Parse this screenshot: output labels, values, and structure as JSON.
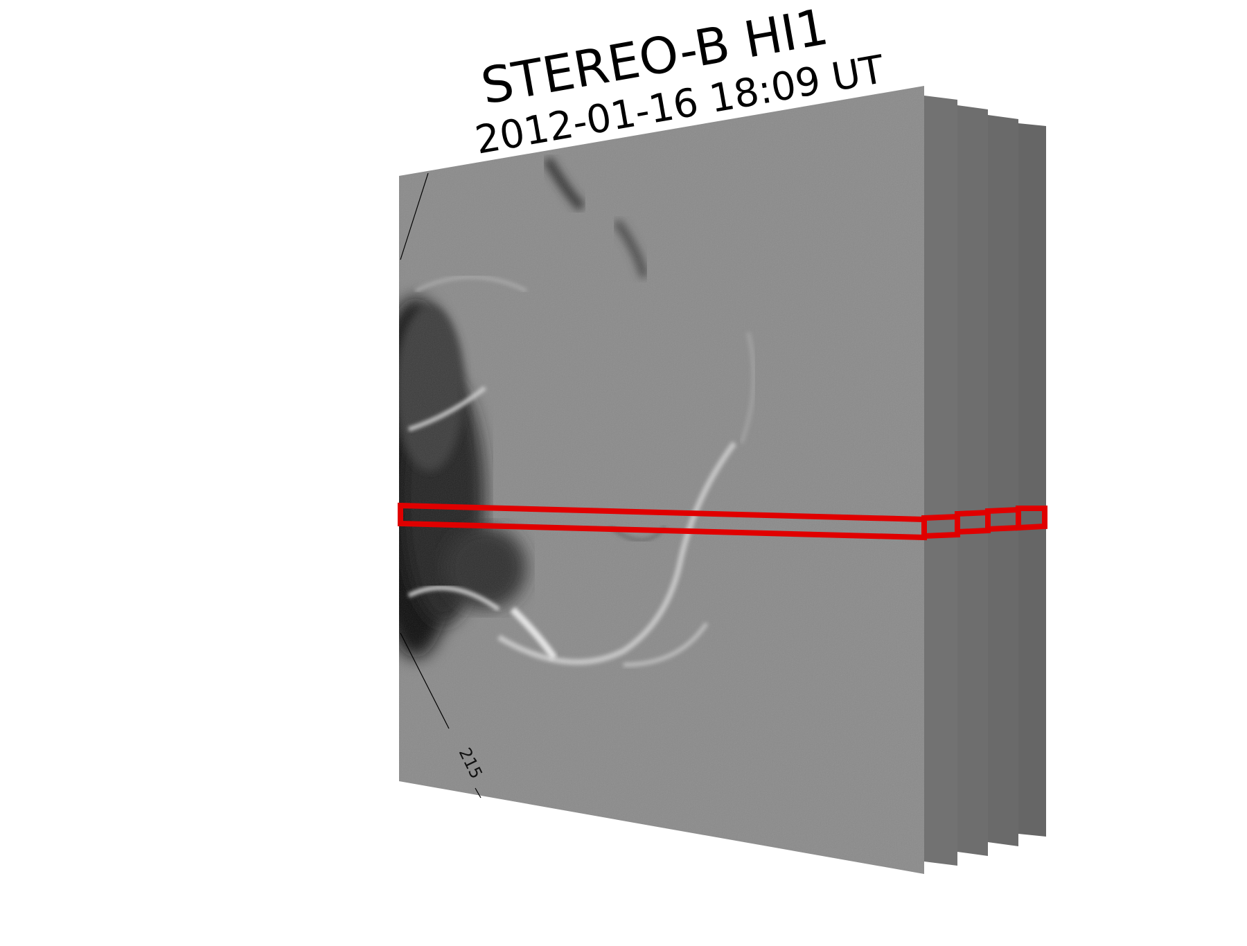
{
  "figure": {
    "instrument": "STEREO-B HI1",
    "timestamp": "2012-01-16 18:09 UT",
    "grid_label": "215",
    "stack_frame_count": 5,
    "colors": {
      "background": "#ffffff",
      "front_frame": "#8a8a8a",
      "back_frames": [
        "#727272",
        "#6e6e6e",
        "#6a6a6a",
        "#666666"
      ],
      "slit": "#e00000",
      "grid_line": "#000000"
    }
  }
}
